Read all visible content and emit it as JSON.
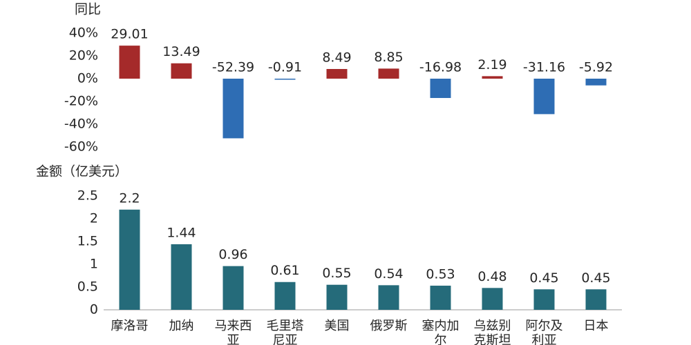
{
  "chart_data": [
    {
      "type": "bar",
      "ylabel": "同比",
      "categories": [
        [
          "摩洛哥"
        ],
        [
          "加纳"
        ],
        [
          "马来西",
          "亚"
        ],
        [
          "毛里塔",
          "尼亚"
        ],
        [
          "美国"
        ],
        [
          "俄罗斯"
        ],
        [
          "塞内加",
          "尔"
        ],
        [
          "乌兹别",
          "克斯坦"
        ],
        [
          "阿尔及",
          "利亚"
        ],
        [
          "日本"
        ]
      ],
      "values": [
        29.01,
        13.49,
        -52.39,
        -0.91,
        8.49,
        8.85,
        -16.98,
        2.19,
        -31.16,
        -5.92
      ],
      "value_labels": [
        "29.01",
        "13.49",
        "-52.39",
        "-0.91",
        "8.49",
        "8.85",
        "-16.98",
        "2.19",
        "-31.16",
        "-5.92"
      ],
      "yticks": [
        "40%",
        "20%",
        "0%",
        "-20%",
        "-40%",
        "-60%"
      ],
      "ytick_values": [
        40,
        20,
        0,
        -20,
        -40,
        -60
      ],
      "ylim": [
        -60,
        40
      ],
      "grid": false,
      "colors": {
        "positive": "#a52a2a",
        "negative": "#2e6db4"
      }
    },
    {
      "type": "bar",
      "ylabel": "金额（亿美元）",
      "categories": [
        [
          "摩洛哥"
        ],
        [
          "加纳"
        ],
        [
          "马来西",
          "亚"
        ],
        [
          "毛里塔",
          "尼亚"
        ],
        [
          "美国"
        ],
        [
          "俄罗斯"
        ],
        [
          "塞内加",
          "尔"
        ],
        [
          "乌兹别",
          "克斯坦"
        ],
        [
          "阿尔及",
          "利亚"
        ],
        [
          "日本"
        ]
      ],
      "values": [
        2.2,
        1.44,
        0.96,
        0.61,
        0.55,
        0.54,
        0.53,
        0.48,
        0.45,
        0.45
      ],
      "value_labels": [
        "2.2",
        "1.44",
        "0.96",
        "0.61",
        "0.55",
        "0.54",
        "0.53",
        "0.48",
        "0.45",
        "0.45"
      ],
      "yticks": [
        "2.5",
        "2",
        "1.5",
        "1",
        "0.5",
        "0"
      ],
      "ytick_values": [
        2.5,
        2,
        1.5,
        1,
        0.5,
        0
      ],
      "ylim": [
        0,
        2.5
      ],
      "grid": false,
      "colors": {
        "bar": "#256b7a",
        "axis": "#999999"
      }
    }
  ]
}
